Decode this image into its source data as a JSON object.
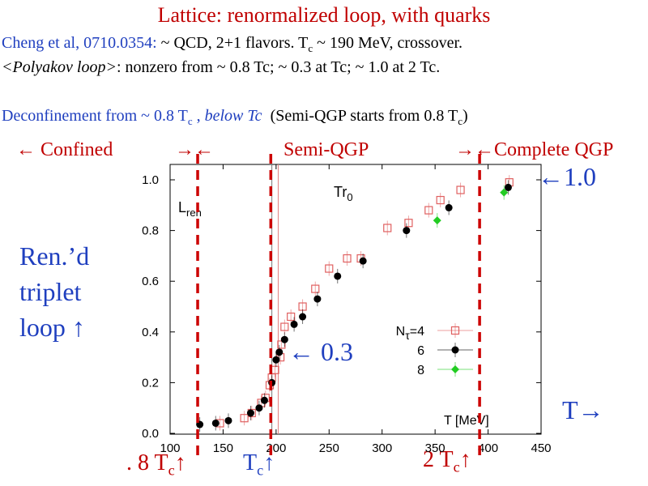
{
  "slide": {
    "title": "Lattice: renormalized loop, with quarks",
    "cite": "Cheng et al, 0710.0354:",
    "line1_rest": " ~ QCD, 2+1 flavors.  T",
    "line1_sub": "c",
    "line1_end": " ~ 190 MeV, crossover.",
    "line2_em": "<Polyakov loop>",
    "line2_rest": ": nonzero from ~ 0.8 Tc; ~ 0.3 at Tc; ~ 1.0 at 2 Tc.",
    "line3_a": "Deconfinement from ~ 0.8 T",
    "line3_sub": "c",
    "line3_b": " , ",
    "line3_em": "below Tc",
    "line3_paren": "(Semi-QGP starts from 0.8 T",
    "line3_paren_sub": "c",
    "line3_paren_end": ")",
    "region_confined": "←   Confined",
    "region_arrows1": "→←",
    "region_semi": "Semi-QGP",
    "region_complete": "→←Complete QGP",
    "arrow_10": "←1.0",
    "arrow_03": "← 0.3",
    "ren_label": "Ren.’d triplet loop ↑",
    "t_arrow": "T→",
    "tc08": ". 8 T",
    "tc08_sub": "c",
    "tc08_arrow": "↑",
    "tc1": "T",
    "tc1_sub": "c",
    "tc1_arrow": "↑",
    "tc2": "2 T",
    "tc2_sub": "c",
    "tc2_arrow": "↑"
  },
  "colors": {
    "red": "#cc0000",
    "blue": "#1f3fbf"
  },
  "chart_data": {
    "type": "scatter",
    "title": "",
    "inner_label_left": "L",
    "inner_label_left_sub": "ren",
    "inner_label_top": "Tr",
    "inner_label_top_sub": "0",
    "xlabel": "T [MeV]",
    "ylabel": "",
    "xlim": [
      100,
      450
    ],
    "ylim": [
      0.0,
      1.05
    ],
    "x_ticks": [
      "100",
      "150",
      "200",
      "250",
      "300",
      "350",
      "400",
      "450"
    ],
    "y_ticks": [
      "0.0",
      "0.2",
      "0.4",
      "0.6",
      "0.8",
      "1.0"
    ],
    "legend_position": "center-right",
    "vlines_T": [
      196,
      202
    ],
    "dashed_markers_T": [
      126,
      195,
      392
    ],
    "series": [
      {
        "name": "Nτ=4",
        "label_main": "N",
        "label_sub": "τ",
        "label_end": "=4",
        "marker": "open-square",
        "color": "#e06060",
        "x": [
          147,
          170,
          177,
          186,
          190,
          194,
          196,
          199,
          204,
          205,
          208,
          214,
          225,
          237,
          250,
          267,
          280,
          305,
          325,
          344,
          355,
          374,
          420
        ],
        "y": [
          0.04,
          0.06,
          0.08,
          0.12,
          0.14,
          0.19,
          0.22,
          0.25,
          0.3,
          0.35,
          0.42,
          0.46,
          0.5,
          0.57,
          0.65,
          0.69,
          0.69,
          0.81,
          0.83,
          0.88,
          0.92,
          0.96,
          0.99
        ]
      },
      {
        "name": "6",
        "label_main": "6",
        "label_sub": "",
        "label_end": "",
        "marker": "filled-circle",
        "color": "#000000",
        "x": [
          128,
          143,
          155,
          176,
          184,
          189,
          196,
          200,
          203,
          208,
          217,
          225,
          239,
          258,
          282,
          323,
          363,
          419
        ],
        "y": [
          0.035,
          0.04,
          0.05,
          0.08,
          0.1,
          0.13,
          0.2,
          0.29,
          0.32,
          0.37,
          0.43,
          0.46,
          0.53,
          0.62,
          0.68,
          0.8,
          0.89,
          0.97
        ]
      },
      {
        "name": "8",
        "label_main": "8",
        "label_sub": "",
        "label_end": "",
        "marker": "filled-diamond",
        "color": "#22cc22",
        "x": [
          352,
          415
        ],
        "y": [
          0.84,
          0.95
        ]
      }
    ]
  }
}
